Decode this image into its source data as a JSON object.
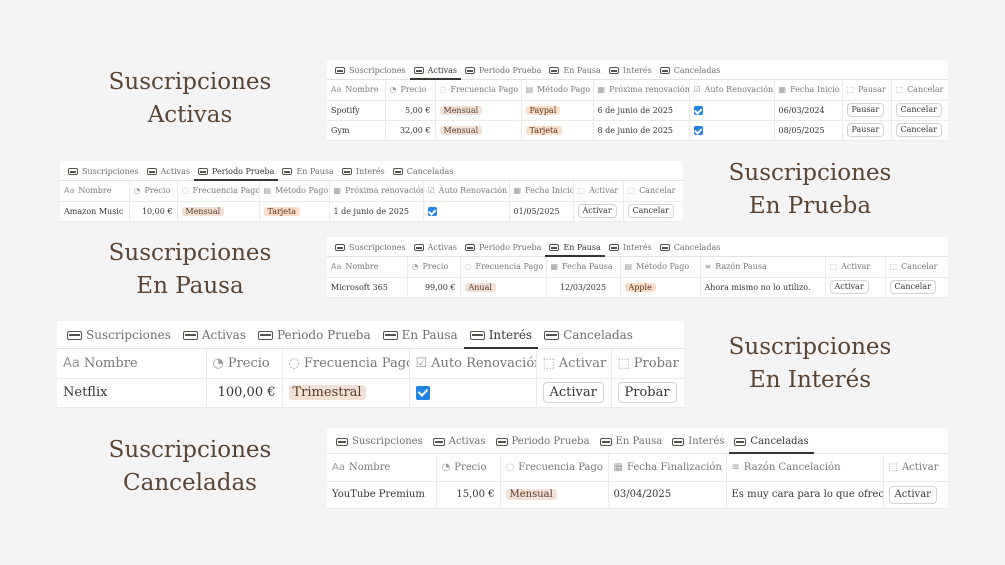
{
  "tab_labels": [
    "Suscripciones",
    "Activas",
    "Periodo Prueba",
    "En Pausa",
    "Interés",
    "Canceladas"
  ],
  "headings": {
    "activas": [
      "Suscripciones",
      "Activas"
    ],
    "prueba": [
      "Suscripciones",
      "En Prueba"
    ],
    "pausa": [
      "Suscripciones",
      "En Pausa"
    ],
    "interes": [
      "Suscripciones",
      "En Interés"
    ],
    "canceladas": [
      "Suscripciones",
      "Canceladas"
    ]
  },
  "activas": {
    "active_tab": "Activas",
    "columns": [
      "Nombre",
      "Precio",
      "Frecuencia Pago",
      "Método Pago",
      "Próxima renovación",
      "Auto Renovación",
      "Fecha Inicio",
      "Pausar",
      "Cancelar"
    ],
    "rows": [
      {
        "nombre": "Spotify",
        "precio": "5,00 €",
        "frecuencia": "Mensual",
        "metodo": "Paypal",
        "renovacion": "6 de junio de 2025",
        "auto": true,
        "inicio": "06/03/2024",
        "pausar": "Pausar",
        "cancelar": "Cancelar"
      },
      {
        "nombre": "Gym",
        "precio": "32,00 €",
        "frecuencia": "Mensual",
        "metodo": "Tarjeta",
        "renovacion": "8 de junio de 2025",
        "auto": true,
        "inicio": "08/05/2025",
        "pausar": "Pausar",
        "cancelar": "Cancelar"
      }
    ]
  },
  "prueba": {
    "active_tab": "Periodo Prueba",
    "columns": [
      "Nombre",
      "Precio",
      "Frecuencia Pago",
      "Método Pago",
      "Próxima renovación",
      "Auto Renovación",
      "Fecha Inicio",
      "Activar",
      "Cancelar"
    ],
    "rows": [
      {
        "nombre": "Amazon Music",
        "precio": "10,00 €",
        "frecuencia": "Mensual",
        "metodo": "Tarjeta",
        "renovacion": "1 de junio de 2025",
        "auto": true,
        "inicio": "01/05/2025",
        "activar": "Activar",
        "cancelar": "Cancelar"
      }
    ]
  },
  "pausa": {
    "active_tab": "En Pausa",
    "columns": [
      "Nombre",
      "Precio",
      "Frecuencia Pago",
      "Fecha Pausa",
      "Método Pago",
      "Razón Pausa",
      "Activar",
      "Cancelar"
    ],
    "rows": [
      {
        "nombre": "Microsoft 365",
        "precio": "99,00 €",
        "frecuencia": "Anual",
        "fecha": "12/03/2025",
        "metodo": "Apple",
        "razon": "Ahora mismo no lo utilizo.",
        "activar": "Activar",
        "cancelar": "Cancelar"
      }
    ]
  },
  "interes": {
    "active_tab": "Interés",
    "columns": [
      "Nombre",
      "Precio",
      "Frecuencia Pago",
      "Auto Renovación",
      "Activar",
      "Probar"
    ],
    "rows": [
      {
        "nombre": "Netflix",
        "precio": "100,00 €",
        "frecuencia": "Trimestral",
        "auto": true,
        "activar": "Activar",
        "probar": "Probar"
      }
    ]
  },
  "canceladas": {
    "active_tab": "Canceladas",
    "columns": [
      "Nombre",
      "Precio",
      "Frecuencia Pago",
      "Fecha Finalización",
      "Razón Cancelación",
      "Activar"
    ],
    "rows": [
      {
        "nombre": "YouTube Premium",
        "precio": "15,00 €",
        "frecuencia": "Mensual",
        "fecha": "03/04/2025",
        "razon": "Es muy cara para lo que ofrece.",
        "activar": "Activar"
      }
    ]
  },
  "colors": {
    "background": "#f4f4f4",
    "heading": "#5a4535",
    "tag_tan": "#f1e1d6",
    "tag_orange": "#fadec9",
    "checkbox": "#2383e2"
  }
}
